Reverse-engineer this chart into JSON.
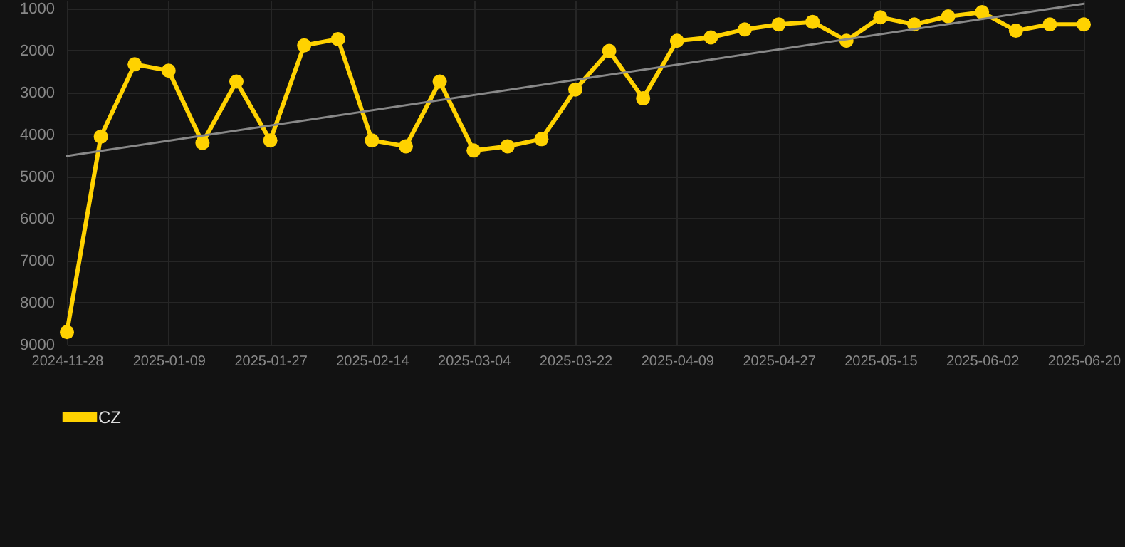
{
  "chart_data": {
    "type": "line",
    "categories": [
      "2024-11-28",
      null,
      null,
      "2025-01-09",
      null,
      null,
      "2025-01-27",
      null,
      null,
      "2025-02-14",
      null,
      null,
      "2025-03-04",
      null,
      null,
      "2025-03-22",
      null,
      null,
      "2025-04-09",
      null,
      null,
      "2025-04-27",
      null,
      null,
      "2025-05-15",
      null,
      null,
      "2025-06-02",
      null,
      null,
      "2025-06-20"
    ],
    "series": [
      {
        "name": "CZ",
        "color": "#ffd200",
        "values": [
          8700,
          4050,
          2330,
          2480,
          4200,
          2740,
          4140,
          1880,
          1730,
          4140,
          4280,
          2740,
          4380,
          4280,
          4110,
          2930,
          2010,
          3140,
          1770,
          1690,
          1500,
          1380,
          1320,
          1770,
          1210,
          1380,
          1190,
          1090,
          1530,
          1380,
          1380
        ]
      },
      {
        "type": "line",
        "color": "#888888",
        "values": [
          4510,
          null,
          null,
          null,
          null,
          null,
          null,
          null,
          null,
          null,
          null,
          null,
          null,
          null,
          null,
          null,
          null,
          null,
          null,
          null,
          null,
          null,
          null,
          null,
          null,
          null,
          null,
          null,
          null,
          null,
          890
        ],
        "marker": "none"
      }
    ],
    "ylim": [
      9000,
      800
    ],
    "yticks": [
      1000,
      2000,
      3000,
      4000,
      5000,
      6000,
      7000,
      8000,
      9000
    ],
    "grid": true,
    "legend": "bottom",
    "marker": "circle",
    "line_style": "solid"
  }
}
